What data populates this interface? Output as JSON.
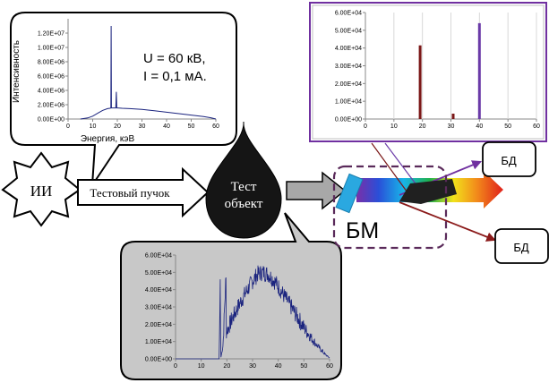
{
  "source": {
    "label": "ИИ"
  },
  "beam": {
    "label": "Тестовый пучок"
  },
  "object": {
    "line1": "Тест",
    "line2": "объект"
  },
  "monochromator": {
    "label": "БМ"
  },
  "detectors": [
    {
      "label": "БД"
    },
    {
      "label": "БД"
    }
  ],
  "colors": {
    "purple": "#7030a0",
    "darkred": "#8b1a1a",
    "navy": "#1f1f8f",
    "callout_gray": "#c8c8c8"
  },
  "params": {
    "voltage": "U = 60 кВ,",
    "current": "I = 0,1 мА."
  },
  "chart_data": [
    {
      "id": "source-spectrum",
      "type": "line",
      "title": "",
      "xlabel": "Энергия,  кэВ",
      "ylabel": "Интенсивность",
      "xlim": [
        0,
        60
      ],
      "ylim": [
        0,
        14000000
      ],
      "x_ticks": [
        0,
        10,
        20,
        30,
        40,
        50,
        60
      ],
      "y_ticks": [
        0,
        2000000,
        4000000,
        6000000,
        8000000,
        10000000,
        12000000
      ],
      "x_tick_labels": [
        "0",
        "10",
        "20",
        "30",
        "40",
        "50",
        "60"
      ],
      "y_tick_labels": [
        "0.00E+00",
        "2.00E+06",
        "4.00E+06",
        "6.00E+06",
        "8.00E+06",
        "1.00E+07",
        "1.20E+07"
      ],
      "series": [
        {
          "x": [
            5,
            8,
            10,
            12,
            14,
            16,
            17,
            17.4,
            17.5,
            17.6,
            18,
            19.4,
            19.6,
            19.8,
            20,
            22,
            25,
            30,
            35,
            40,
            45,
            50,
            55,
            58,
            60
          ],
          "y": [
            0,
            150000,
            400000,
            800000,
            1200000,
            1450000,
            1500000,
            1550000,
            13000000,
            1550000,
            1550000,
            1550000,
            3800000,
            1550000,
            1550000,
            1500000,
            1450000,
            1350000,
            1150000,
            950000,
            750000,
            550000,
            350000,
            180000,
            0
          ]
        }
      ]
    },
    {
      "id": "filtered-bars",
      "type": "bar",
      "title": "",
      "xlabel": "",
      "ylabel": "",
      "xlim": [
        0,
        60
      ],
      "ylim": [
        0,
        60000
      ],
      "x_ticks": [
        0,
        10,
        20,
        30,
        40,
        50,
        60
      ],
      "y_ticks": [
        0,
        10000,
        20000,
        30000,
        40000,
        50000,
        60000
      ],
      "x_tick_labels": [
        "0",
        "10",
        "20",
        "30",
        "40",
        "50",
        "60"
      ],
      "y_tick_labels": [
        "0.00E+00",
        "1.00E+04",
        "2.00E+04",
        "3.00E+04",
        "4.00E+04",
        "5.00E+04",
        "6.00E+04"
      ],
      "bars": [
        {
          "x": 19.2,
          "y": 41500,
          "color": "#7b1818"
        },
        {
          "x": 30.8,
          "y": 3000,
          "color": "#7b1818"
        },
        {
          "x": 40,
          "y": 54000,
          "color": "#6a3aa8"
        }
      ]
    },
    {
      "id": "transmitted-spectrum",
      "type": "line",
      "title": "",
      "xlabel": "",
      "ylabel": "",
      "xlim": [
        0,
        60
      ],
      "ylim": [
        0,
        60000
      ],
      "x_ticks": [
        0,
        10,
        20,
        30,
        40,
        50,
        60
      ],
      "y_ticks": [
        0,
        10000,
        20000,
        30000,
        40000,
        50000,
        60000
      ],
      "x_tick_labels": [
        "0",
        "10",
        "20",
        "30",
        "40",
        "50",
        "60"
      ],
      "y_tick_labels": [
        "0.00E+00",
        "1.00E+04",
        "2.00E+04",
        "3.00E+04",
        "4.00E+04",
        "5.00E+04",
        "6.00E+04"
      ],
      "envelope": {
        "x": [
          15,
          17,
          17.4,
          17.6,
          18.5,
          19.6,
          19.8,
          20,
          22,
          25,
          28,
          30,
          32,
          34,
          36,
          38,
          40,
          42,
          45,
          48,
          50,
          53,
          55,
          58,
          60
        ],
        "y": [
          0,
          0,
          46000,
          0,
          8000,
          47000,
          15000,
          16000,
          23000,
          32000,
          40000,
          45000,
          49000,
          50000,
          49000,
          46000,
          42000,
          37000,
          30000,
          23000,
          18000,
          12000,
          8000,
          3000,
          500
        ]
      },
      "noise_amplitude": 5000
    }
  ]
}
